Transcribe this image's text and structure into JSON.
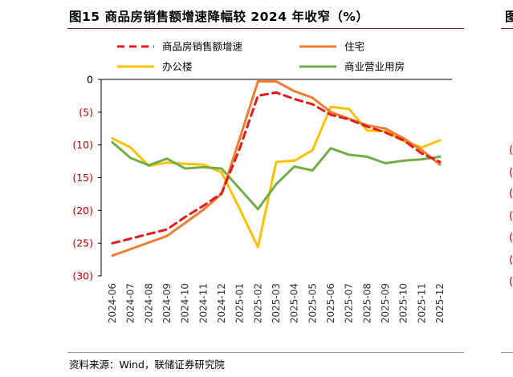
{
  "figure": {
    "title": "图15 商品房销售额增速降幅较 2024 年收窄（%）",
    "source": "资料来源：Wind，联储证券研究院",
    "edge_title_char": "图"
  },
  "chart_data": {
    "type": "line",
    "categories": [
      "2024-06",
      "2024-07",
      "2024-08",
      "2024-09",
      "2024-10",
      "2024-11",
      "2024-12",
      "2025-01",
      "2025-02",
      "2025-03",
      "2025-04",
      "2025-05",
      "2025-06",
      "2025-07",
      "2025-08",
      "2025-09",
      "2025-10",
      "2025-11",
      "2025-12"
    ],
    "ylim": [
      -30,
      0
    ],
    "yticks": [
      0,
      -5,
      -10,
      -15,
      -20,
      -25,
      -30
    ],
    "ytick_labels": [
      "0",
      "(5)",
      "(10)",
      "(15)",
      "(20)",
      "(25)",
      "(30)"
    ],
    "ytick_color": "#c00000",
    "zero_label_color": "#000000",
    "legend_placement": "top, two columns",
    "series": [
      {
        "name": "商品房销售额增速",
        "color": "#e41a1c",
        "style": "dashed",
        "values": [
          -25.0,
          -24.3,
          -23.6,
          -22.9,
          -21.0,
          -19.3,
          -17.4,
          -10.5,
          -2.5,
          -2.0,
          -3.0,
          -3.8,
          -5.4,
          -6.1,
          -7.2,
          -8.1,
          -9.3,
          -11.3,
          -12.6
        ]
      },
      {
        "name": "住宅",
        "color": "#ed7d31",
        "style": "solid",
        "values": [
          -26.9,
          -25.9,
          -24.9,
          -23.9,
          -21.9,
          -19.9,
          -17.5,
          -9.0,
          -0.3,
          -0.3,
          -1.8,
          -2.8,
          -5.0,
          -6.0,
          -7.0,
          -7.5,
          -9.0,
          -10.8,
          -13.0
        ]
      },
      {
        "name": "办公楼",
        "color": "#ffc000",
        "style": "solid",
        "values": [
          -9.0,
          -10.4,
          -13.2,
          -12.7,
          -12.9,
          -13.0,
          -14.2,
          -19.8,
          -25.6,
          -12.6,
          -12.4,
          -10.8,
          -4.2,
          -4.5,
          -7.8,
          -7.9,
          -9.4,
          -10.4,
          -9.3
        ]
      },
      {
        "name": "商业营业用房",
        "color": "#70ad47",
        "style": "solid",
        "values": [
          -9.6,
          -12.0,
          -13.1,
          -12.1,
          -13.6,
          -13.4,
          -13.6,
          -16.7,
          -19.8,
          -16.0,
          -13.3,
          -13.9,
          -10.5,
          -11.5,
          -11.8,
          -12.8,
          -12.4,
          -12.2,
          -11.8
        ]
      }
    ]
  },
  "edge_ticks": [
    "(",
    "(",
    "(",
    "(",
    "(",
    "(",
    "("
  ]
}
